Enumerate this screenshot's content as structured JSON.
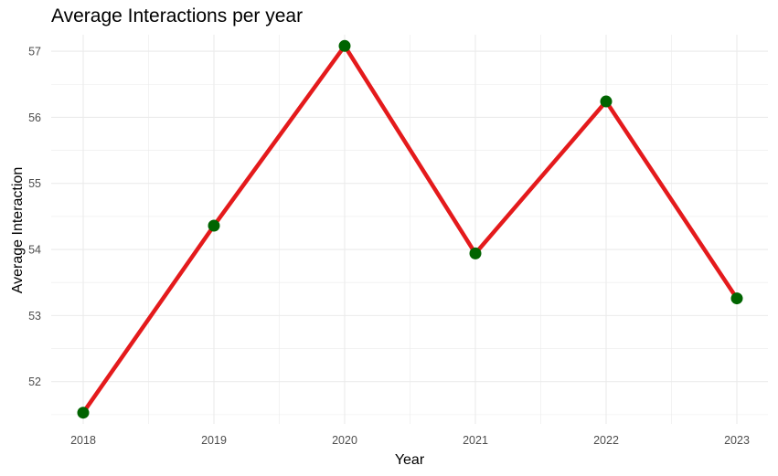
{
  "chart_data": {
    "type": "line",
    "title": "Average Interactions per year",
    "xlabel": "Year",
    "ylabel": "Average Interaction",
    "categories": [
      "2018",
      "2019",
      "2020",
      "2021",
      "2022",
      "2023"
    ],
    "series": [
      {
        "values": [
          51.53,
          54.36,
          57.08,
          53.94,
          56.24,
          53.26
        ]
      }
    ],
    "yticks": [
      52,
      53,
      54,
      55,
      56,
      57
    ],
    "ylim": [
      51.36,
      57.25
    ],
    "grid": true,
    "legend": "none",
    "colors": {
      "line": "#e41a1c",
      "point": "#006400",
      "grid": "#ebebeb"
    }
  }
}
